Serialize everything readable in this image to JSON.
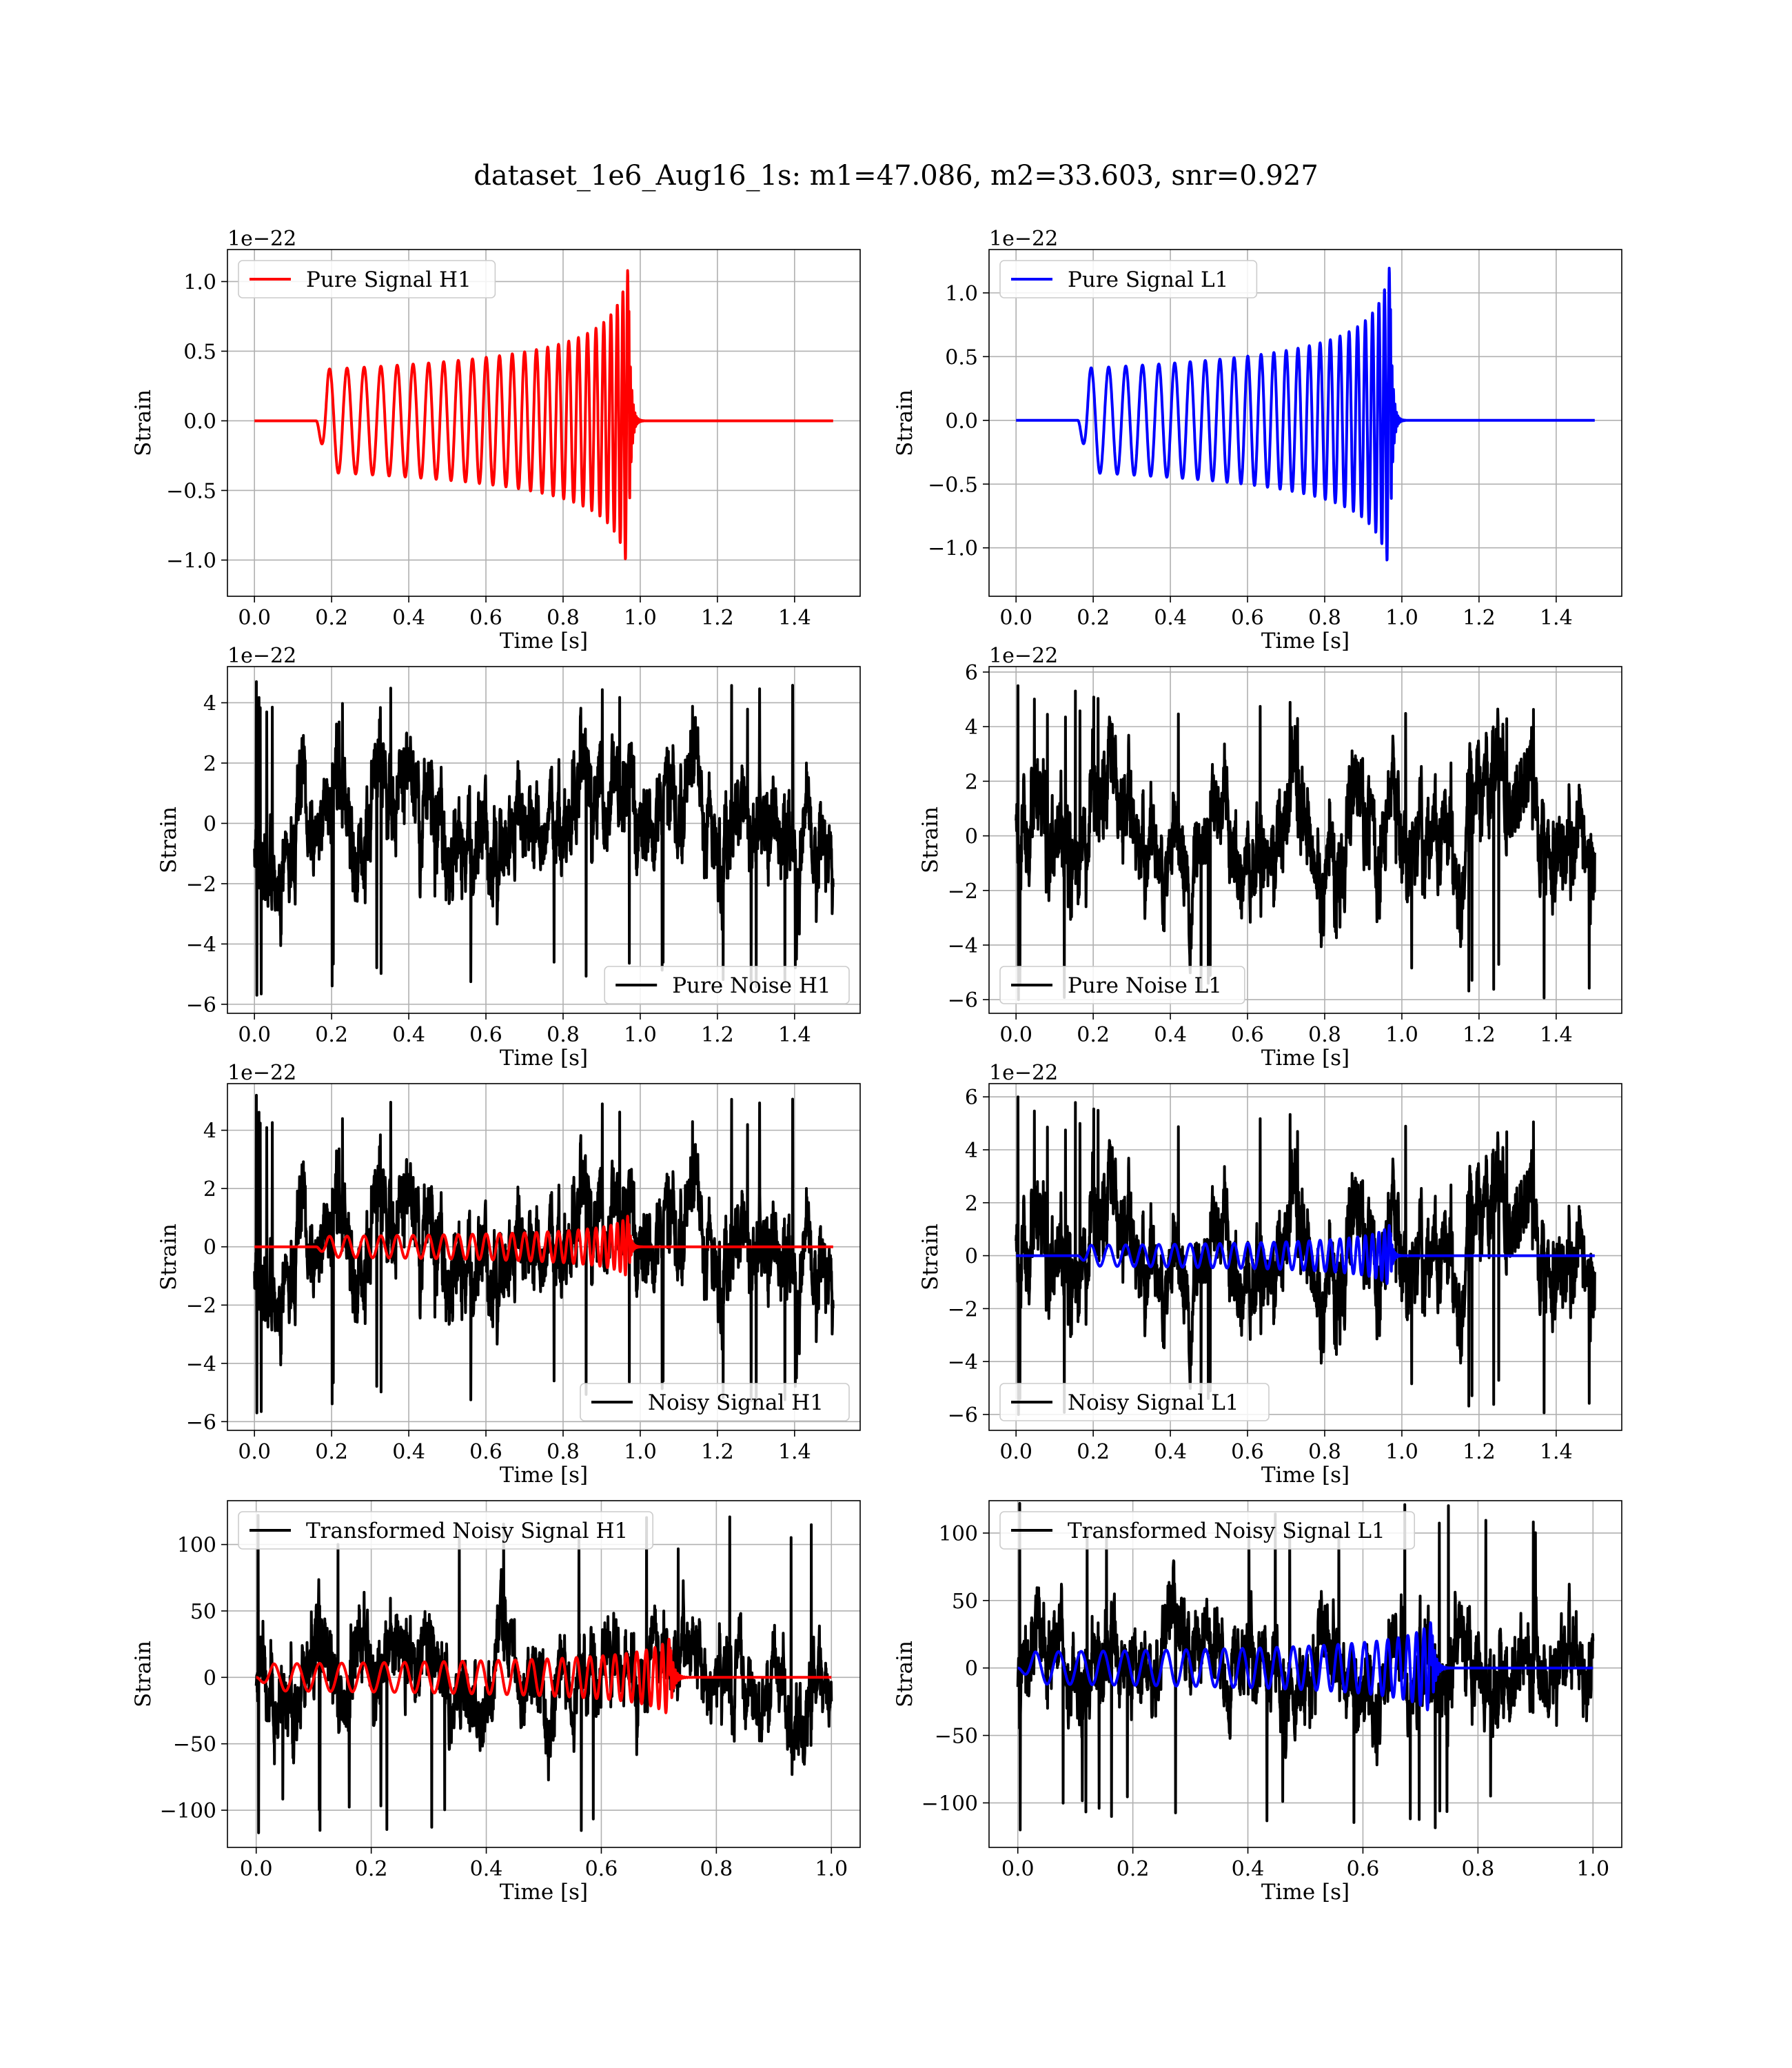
{
  "figure": {
    "title": "dataset_1e6_Aug16_1s: m1=47.086, m2=33.603, snr=0.927"
  },
  "chart_data": [
    {
      "id": "pure-signal-h1",
      "type": "line",
      "xlabel": "Time [s]",
      "ylabel": "Strain",
      "offset_text": "1e−22",
      "xlim": [
        -0.07,
        1.57
      ],
      "ylim": [
        -1.26,
        1.23
      ],
      "xticks": [
        0.0,
        0.2,
        0.4,
        0.6,
        0.8,
        1.0,
        1.2,
        1.4
      ],
      "xtick_labels": [
        "0.0",
        "0.2",
        "0.4",
        "0.6",
        "0.8",
        "1.0",
        "1.2",
        "1.4"
      ],
      "yticks": [
        -1.0,
        -0.5,
        0.0,
        0.5,
        1.0
      ],
      "ytick_labels": [
        "−1.0",
        "−0.5",
        "0.0",
        "0.5",
        "1.0"
      ],
      "legend": {
        "placement": "upper-left"
      },
      "series": [
        {
          "name": "Pure Signal H1",
          "color": "#ff0000",
          "kind": "chirp",
          "x_start": 0.0,
          "x_end": 1.5,
          "t_start": 0.16,
          "t_merge": 0.97,
          "peak": 1.13,
          "n_cycles": 26
        }
      ]
    },
    {
      "id": "pure-signal-l1",
      "type": "line",
      "xlabel": "Time [s]",
      "ylabel": "Strain",
      "offset_text": "1e−22",
      "xlim": [
        -0.07,
        1.57
      ],
      "ylim": [
        -1.38,
        1.34
      ],
      "xticks": [
        0.0,
        0.2,
        0.4,
        0.6,
        0.8,
        1.0,
        1.2,
        1.4
      ],
      "xtick_labels": [
        "0.0",
        "0.2",
        "0.4",
        "0.6",
        "0.8",
        "1.0",
        "1.2",
        "1.4"
      ],
      "yticks": [
        -1.0,
        -0.5,
        0.0,
        0.5,
        1.0
      ],
      "ytick_labels": [
        "−1.0",
        "−0.5",
        "0.0",
        "0.5",
        "1.0"
      ],
      "legend": {
        "placement": "upper-left"
      },
      "series": [
        {
          "name": "Pure Signal L1",
          "color": "#0000ff",
          "kind": "chirp",
          "x_start": 0.0,
          "x_end": 1.5,
          "t_start": 0.16,
          "t_merge": 0.97,
          "peak": 1.25,
          "n_cycles": 26
        }
      ]
    },
    {
      "id": "pure-noise-h1",
      "type": "line",
      "xlabel": "Time [s]",
      "ylabel": "Strain",
      "offset_text": "1e−22",
      "xlim": [
        -0.07,
        1.57
      ],
      "ylim": [
        -6.3,
        5.2
      ],
      "xticks": [
        0.0,
        0.2,
        0.4,
        0.6,
        0.8,
        1.0,
        1.2,
        1.4
      ],
      "xtick_labels": [
        "0.0",
        "0.2",
        "0.4",
        "0.6",
        "0.8",
        "1.0",
        "1.2",
        "1.4"
      ],
      "yticks": [
        -6,
        -4,
        -2,
        0,
        2,
        4
      ],
      "ytick_labels": [
        "−6",
        "−4",
        "−2",
        "0",
        "2",
        "4"
      ],
      "legend": {
        "placement": "lower-right"
      },
      "series": [
        {
          "name": "Pure Noise H1",
          "color": "#000000",
          "kind": "noise",
          "x_start": 0.0,
          "x_end": 1.5,
          "seed": 11,
          "max": 4.7,
          "min": -5.7,
          "sigma": 1.45
        }
      ]
    },
    {
      "id": "pure-noise-l1",
      "type": "line",
      "xlabel": "Time [s]",
      "ylabel": "Strain",
      "offset_text": "1e−22",
      "xlim": [
        -0.07,
        1.57
      ],
      "ylim": [
        -6.5,
        6.2
      ],
      "xticks": [
        0.0,
        0.2,
        0.4,
        0.6,
        0.8,
        1.0,
        1.2,
        1.4
      ],
      "xtick_labels": [
        "0.0",
        "0.2",
        "0.4",
        "0.6",
        "0.8",
        "1.0",
        "1.2",
        "1.4"
      ],
      "yticks": [
        -6,
        -4,
        -2,
        0,
        2,
        4,
        6
      ],
      "ytick_labels": [
        "−6",
        "−4",
        "−2",
        "0",
        "2",
        "4",
        "6"
      ],
      "legend": {
        "placement": "lower-left"
      },
      "series": [
        {
          "name": "Pure Noise L1",
          "color": "#000000",
          "kind": "noise",
          "x_start": 0.0,
          "x_end": 1.5,
          "seed": 23,
          "max": 5.5,
          "min": -6.0,
          "sigma": 1.6
        }
      ]
    },
    {
      "id": "noisy-signal-h1",
      "type": "line",
      "xlabel": "Time [s]",
      "ylabel": "Strain",
      "offset_text": "1e−22",
      "xlim": [
        -0.07,
        1.57
      ],
      "ylim": [
        -6.3,
        5.6
      ],
      "xticks": [
        0.0,
        0.2,
        0.4,
        0.6,
        0.8,
        1.0,
        1.2,
        1.4
      ],
      "xtick_labels": [
        "0.0",
        "0.2",
        "0.4",
        "0.6",
        "0.8",
        "1.0",
        "1.2",
        "1.4"
      ],
      "yticks": [
        -6,
        -4,
        -2,
        0,
        2,
        4
      ],
      "ytick_labels": [
        "−6",
        "−4",
        "−2",
        "0",
        "2",
        "4"
      ],
      "legend": {
        "placement": "lower-right"
      },
      "series": [
        {
          "name": "Noisy Signal H1",
          "color": "#000000",
          "kind": "noise",
          "x_start": 0.0,
          "x_end": 1.5,
          "seed": 11,
          "max": 5.2,
          "min": -5.7,
          "sigma": 1.45
        },
        {
          "color": "#ff0000",
          "kind": "chirp",
          "x_start": 0.0,
          "x_end": 1.5,
          "t_start": 0.16,
          "t_merge": 0.97,
          "peak": 1.1,
          "n_cycles": 26
        }
      ]
    },
    {
      "id": "noisy-signal-l1",
      "type": "line",
      "xlabel": "Time [s]",
      "ylabel": "Strain",
      "offset_text": "1e−22",
      "xlim": [
        -0.07,
        1.57
      ],
      "ylim": [
        -6.6,
        6.5
      ],
      "xticks": [
        0.0,
        0.2,
        0.4,
        0.6,
        0.8,
        1.0,
        1.2,
        1.4
      ],
      "xtick_labels": [
        "0.0",
        "0.2",
        "0.4",
        "0.6",
        "0.8",
        "1.0",
        "1.2",
        "1.4"
      ],
      "yticks": [
        -6,
        -4,
        -2,
        0,
        2,
        4,
        6
      ],
      "ytick_labels": [
        "−6",
        "−4",
        "−2",
        "0",
        "2",
        "4",
        "6"
      ],
      "legend": {
        "placement": "lower-left"
      },
      "series": [
        {
          "name": "Noisy Signal L1",
          "color": "#000000",
          "kind": "noise",
          "x_start": 0.0,
          "x_end": 1.5,
          "seed": 23,
          "max": 6.0,
          "min": -6.0,
          "sigma": 1.6
        },
        {
          "color": "#0000ff",
          "kind": "chirp",
          "x_start": 0.0,
          "x_end": 1.5,
          "t_start": 0.16,
          "t_merge": 0.97,
          "peak": 1.2,
          "n_cycles": 26
        }
      ]
    },
    {
      "id": "transformed-noisy-signal-h1",
      "type": "line",
      "xlabel": "Time [s]",
      "ylabel": "Strain",
      "offset_text": "",
      "xlim": [
        -0.05,
        1.05
      ],
      "ylim": [
        -128,
        133
      ],
      "xticks": [
        0.0,
        0.2,
        0.4,
        0.6,
        0.8,
        1.0
      ],
      "xtick_labels": [
        "0.0",
        "0.2",
        "0.4",
        "0.6",
        "0.8",
        "1.0"
      ],
      "yticks": [
        -100,
        -50,
        0,
        50,
        100
      ],
      "ytick_labels": [
        "−100",
        "−50",
        "0",
        "50",
        "100"
      ],
      "legend": {
        "placement": "upper-left"
      },
      "series": [
        {
          "name": "Transformed Noisy Signal H1",
          "color": "#000000",
          "kind": "noise",
          "x_start": 0.0,
          "x_end": 1.0,
          "seed": 37,
          "max": 122,
          "min": -117,
          "sigma": 28
        },
        {
          "color": "#ff0000",
          "kind": "chirp",
          "x_start": 0.0,
          "x_end": 1.0,
          "t_start": 0.0,
          "t_merge": 0.72,
          "peak": 30,
          "n_cycles": 26
        }
      ]
    },
    {
      "id": "transformed-noisy-signal-l1",
      "type": "line",
      "xlabel": "Time [s]",
      "ylabel": "Strain",
      "offset_text": "",
      "xlim": [
        -0.05,
        1.05
      ],
      "ylim": [
        -133,
        124
      ],
      "xticks": [
        0.0,
        0.2,
        0.4,
        0.6,
        0.8,
        1.0
      ],
      "xtick_labels": [
        "0.0",
        "0.2",
        "0.4",
        "0.6",
        "0.8",
        "1.0"
      ],
      "yticks": [
        -100,
        -50,
        0,
        50,
        100
      ],
      "ytick_labels": [
        "−100",
        "−50",
        "0",
        "50",
        "100"
      ],
      "legend": {
        "placement": "upper-left"
      },
      "series": [
        {
          "name": "Transformed Noisy Signal L1",
          "color": "#000000",
          "kind": "noise",
          "x_start": 0.0,
          "x_end": 1.0,
          "seed": 41,
          "max": 122,
          "min": -120,
          "sigma": 28
        },
        {
          "color": "#0000ff",
          "kind": "chirp",
          "x_start": 0.0,
          "x_end": 1.0,
          "t_start": 0.0,
          "t_merge": 0.72,
          "peak": 35,
          "n_cycles": 26
        }
      ]
    }
  ]
}
